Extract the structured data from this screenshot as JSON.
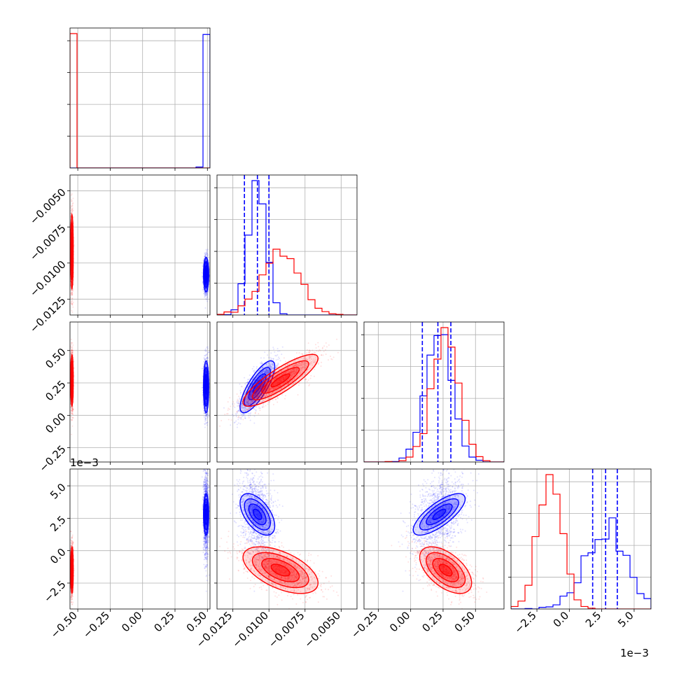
{
  "chart_data": {
    "type": "corner",
    "parameters": [
      {
        "range": [
          -0.56,
          0.52
        ],
        "ticks": [
          -0.5,
          -0.25,
          0.0,
          0.25,
          0.5
        ],
        "tick_labels": [
          "−0.50",
          "−0.25",
          "0.00",
          "0.25",
          "0.50"
        ],
        "offset_label": ""
      },
      {
        "range": [
          -0.0136,
          -0.0039
        ],
        "ticks": [
          -0.0125,
          -0.01,
          -0.0075,
          -0.005
        ],
        "tick_labels": [
          "−0.0125",
          "−0.0100",
          "−0.0075",
          "−0.0050"
        ],
        "offset_label": ""
      },
      {
        "range": [
          -0.36,
          0.72
        ],
        "ticks": [
          -0.25,
          0.0,
          0.25,
          0.5
        ],
        "tick_labels": [
          "−0.25",
          "0.00",
          "0.25",
          "0.50"
        ],
        "offset_label": ""
      },
      {
        "range": [
          -4.5,
          6.3
        ],
        "ticks": [
          -2.5,
          0.0,
          2.5,
          5.0
        ],
        "tick_labels": [
          "−2.5",
          "0.0",
          "2.5",
          "5.0"
        ],
        "offset_label": "1e−3"
      }
    ],
    "series": [
      {
        "color": "#0000ff",
        "means": [
          0.49,
          -0.0108,
          0.22,
          2.8
        ],
        "sds": [
          0.01,
          0.0006,
          0.1,
          0.8
        ],
        "correlations": {
          "1-2": 0.0,
          "1-3": 0.0,
          "1-4": 0.0,
          "2-3": 0.78,
          "2-4": -0.55,
          "3-4": 0.75
        },
        "quantile_lines": [
          [],
          [
            -0.0117,
            -0.0108,
            -0.01
          ],
          [
            0.09,
            0.21,
            0.31
          ],
          [
            1.8,
            2.8,
            3.7
          ]
        ]
      },
      {
        "color": "#ff0000",
        "means": [
          -0.545,
          -0.0092,
          0.27,
          -1.5
        ],
        "sds": [
          0.005,
          0.0013,
          0.1,
          0.9
        ],
        "correlations": {
          "1-2": 0.0,
          "1-3": 0.0,
          "1-4": 0.0,
          "2-3": 0.85,
          "2-4": -0.55,
          "3-4": -0.55
        },
        "quantile_lines": [
          [],
          [],
          [],
          []
        ]
      }
    ],
    "grid": true,
    "title": "",
    "xlabel": "",
    "ylabel": ""
  }
}
